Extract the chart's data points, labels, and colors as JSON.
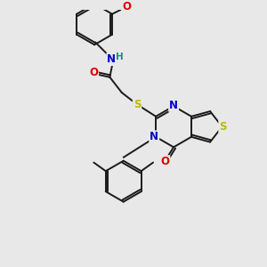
{
  "background_color": "#e8e8e8",
  "bond_color": "#1a1a1a",
  "atom_colors": {
    "N": "#0000cc",
    "O": "#dd0000",
    "S": "#bbbb00",
    "H": "#228888",
    "C": "#1a1a1a"
  },
  "font_size_atom": 8.5,
  "fig_size": [
    3.0,
    3.0
  ],
  "dpi": 100
}
